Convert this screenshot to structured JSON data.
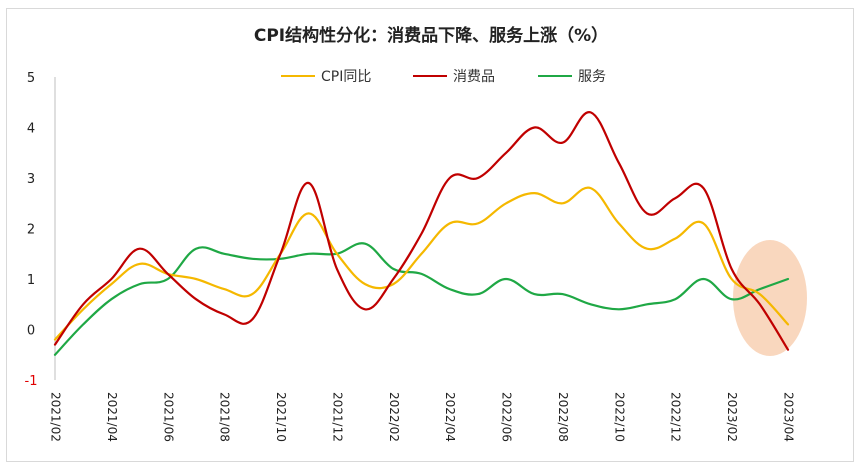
{
  "chart_data": {
    "type": "line",
    "title": "CPI结构性分化：消费品下降、服务上涨（%）",
    "ylim": [
      -1,
      5
    ],
    "yticks": [
      -1,
      0,
      1,
      2,
      3,
      4,
      5
    ],
    "x": [
      "2021/02",
      "2021/03",
      "2021/04",
      "2021/05",
      "2021/06",
      "2021/07",
      "2021/08",
      "2021/09",
      "2021/10",
      "2021/11",
      "2021/12",
      "2022/01",
      "2022/02",
      "2022/03",
      "2022/04",
      "2022/05",
      "2022/06",
      "2022/07",
      "2022/08",
      "2022/09",
      "2022/10",
      "2022/11",
      "2022/12",
      "2023/01",
      "2023/02",
      "2023/03",
      "2023/04"
    ],
    "xtick_labels": [
      "2021/02",
      "2021/04",
      "2021/06",
      "2021/08",
      "2021/10",
      "2021/12",
      "2022/02",
      "2022/04",
      "2022/06",
      "2022/08",
      "2022/10",
      "2022/12",
      "2023/02",
      "2023/04"
    ],
    "legend_position": "top",
    "grid": false,
    "highlight": "ellipse around 2023/02–2023/04",
    "series": [
      {
        "name": "CPI同比",
        "color": "#f5b800",
        "values": [
          -0.2,
          0.4,
          0.9,
          1.3,
          1.1,
          1.0,
          0.8,
          0.7,
          1.5,
          2.3,
          1.5,
          0.9,
          0.9,
          1.5,
          2.1,
          2.1,
          2.5,
          2.7,
          2.5,
          2.8,
          2.1,
          1.6,
          1.8,
          2.1,
          1.0,
          0.7,
          0.1
        ]
      },
      {
        "name": "消费品",
        "color": "#c00000",
        "values": [
          -0.3,
          0.5,
          1.0,
          1.6,
          1.1,
          0.6,
          0.3,
          0.2,
          1.5,
          2.9,
          1.2,
          0.4,
          1.0,
          1.9,
          3.0,
          3.0,
          3.5,
          4.0,
          3.7,
          4.3,
          3.3,
          2.3,
          2.6,
          2.8,
          1.2,
          0.5,
          -0.4
        ]
      },
      {
        "name": "服务",
        "color": "#1fa845",
        "values": [
          -0.5,
          0.1,
          0.6,
          0.9,
          1.0,
          1.6,
          1.5,
          1.4,
          1.4,
          1.5,
          1.5,
          1.7,
          1.2,
          1.1,
          0.8,
          0.7,
          1.0,
          0.7,
          0.7,
          0.5,
          0.4,
          0.5,
          0.6,
          1.0,
          0.6,
          0.8,
          1.0
        ]
      }
    ]
  }
}
